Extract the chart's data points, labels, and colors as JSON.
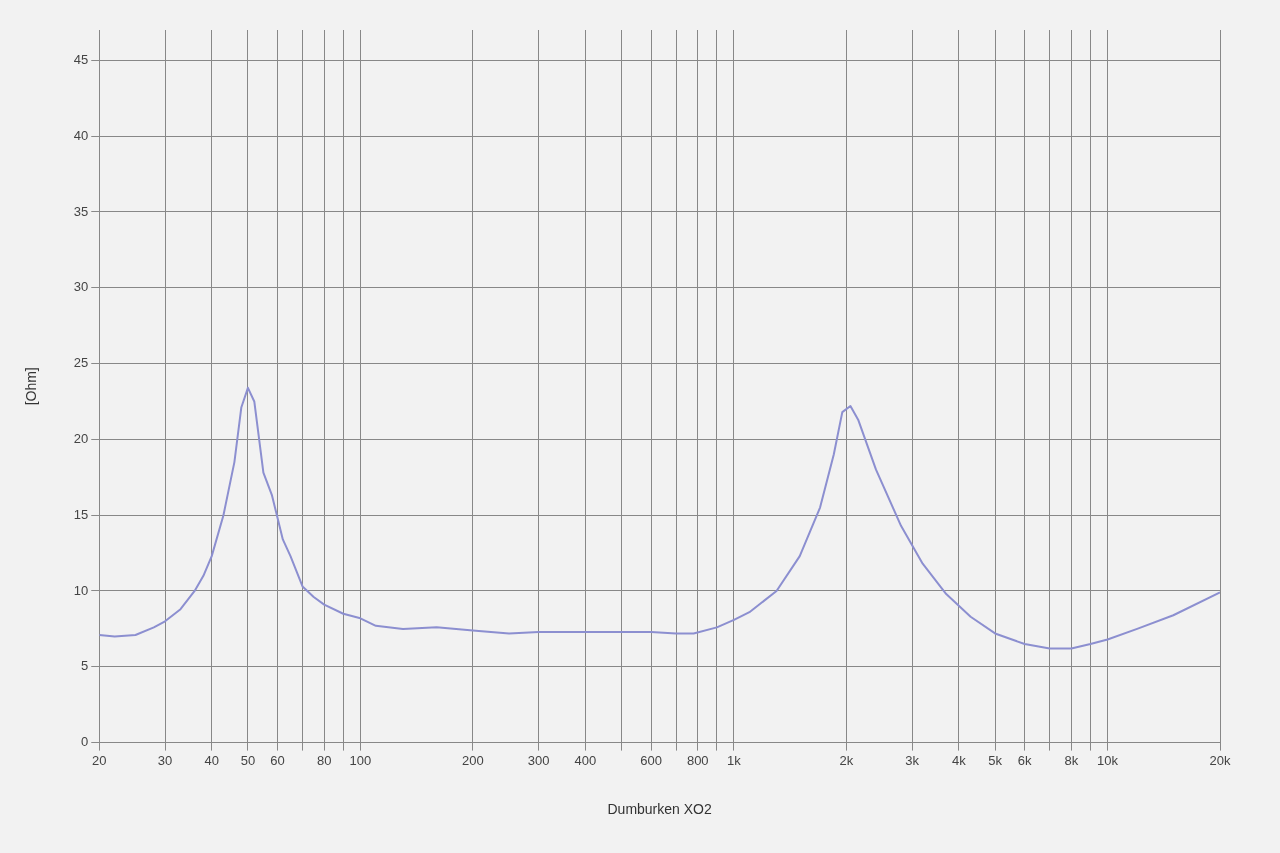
{
  "chart_data": {
    "type": "line",
    "xlabel": "Dumburken XO2",
    "ylabel": "[Ohm]",
    "log": "x",
    "grid": true,
    "legend": false,
    "marker": "none",
    "line_style": "solid",
    "xlim": [
      20,
      20000
    ],
    "ylim": [
      0,
      47
    ],
    "xticks": [
      20,
      30,
      40,
      50,
      60,
      {
        "value": 70,
        "label": null
      },
      80,
      {
        "value": 90,
        "label": null
      },
      100,
      200,
      300,
      400,
      {
        "value": 500,
        "label": null
      },
      600,
      {
        "value": 700,
        "label": null
      },
      800,
      {
        "value": 900,
        "label": null
      },
      {
        "value": 1000,
        "label": "1k"
      },
      {
        "value": 2000,
        "label": "2k"
      },
      {
        "value": 3000,
        "label": "3k"
      },
      {
        "value": 4000,
        "label": "4k"
      },
      {
        "value": 5000,
        "label": "5k"
      },
      {
        "value": 6000,
        "label": "6k"
      },
      {
        "value": 7000,
        "label": null
      },
      {
        "value": 8000,
        "label": "8k"
      },
      {
        "value": 9000,
        "label": null
      },
      {
        "value": 10000,
        "label": "10k"
      },
      {
        "value": 20000,
        "label": "20k"
      }
    ],
    "yticks": [
      0,
      5,
      10,
      15,
      20,
      25,
      30,
      35,
      40,
      45
    ],
    "x": [
      20,
      22,
      25,
      28,
      30,
      33,
      36,
      38,
      40,
      43,
      46,
      48,
      50,
      52,
      55,
      58,
      62,
      65,
      70,
      75,
      80,
      90,
      100,
      110,
      130,
      160,
      200,
      250,
      300,
      400,
      500,
      600,
      700,
      780,
      900,
      1000,
      1100,
      1300,
      1500,
      1700,
      1850,
      1950,
      2050,
      2150,
      2400,
      2800,
      3200,
      3700,
      4300,
      5000,
      6000,
      7000,
      8000,
      9000,
      10000,
      12000,
      15000,
      20000
    ],
    "series": [
      {
        "color": "#8c8fd0",
        "values": [
          7.1,
          7.0,
          7.1,
          7.6,
          8.0,
          8.8,
          10.0,
          11.0,
          12.3,
          15.0,
          18.5,
          22.1,
          23.4,
          22.5,
          17.8,
          16.3,
          13.4,
          12.3,
          10.3,
          9.6,
          9.1,
          8.5,
          8.2,
          7.7,
          7.5,
          7.6,
          7.4,
          7.2,
          7.3,
          7.3,
          7.3,
          7.3,
          7.2,
          7.2,
          7.6,
          8.1,
          8.6,
          10.0,
          12.3,
          15.5,
          19.0,
          21.8,
          22.2,
          21.3,
          18.0,
          14.3,
          11.8,
          9.8,
          8.3,
          7.2,
          6.5,
          6.2,
          6.2,
          6.5,
          6.8,
          7.5,
          8.4,
          9.9
        ]
      }
    ]
  }
}
